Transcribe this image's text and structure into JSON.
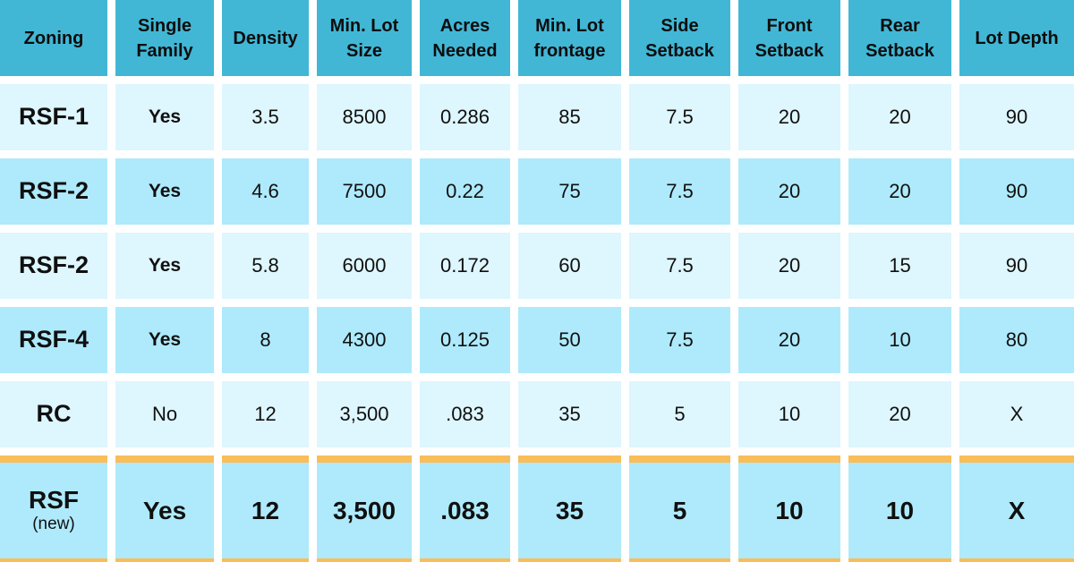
{
  "colors": {
    "header_bg": "#41b7d5",
    "row_light_bg": "#def6fd",
    "row_dark_bg": "#aeeafb",
    "highlight_accent": "#f9bd59",
    "text": "#101010",
    "gap": "#ffffff"
  },
  "header": {
    "labels": [
      "Zoning",
      "Single Family",
      "Density",
      "Min. Lot Size",
      "Acres Needed",
      "Min. Lot frontage",
      "Side Setback",
      "Front Setback",
      "Rear Setback",
      "Lot Depth"
    ]
  },
  "rows": [
    {
      "cells": [
        "RSF-1",
        "Yes",
        "3.5",
        "8500",
        "0.286",
        "85",
        "7.5",
        "20",
        "20",
        "90"
      ]
    },
    {
      "cells": [
        "RSF-2",
        "Yes",
        "4.6",
        "7500",
        "0.22",
        "75",
        "7.5",
        "20",
        "20",
        "90"
      ]
    },
    {
      "cells": [
        "RSF-2",
        "Yes",
        "5.8",
        "6000",
        "0.172",
        "60",
        "7.5",
        "20",
        "15",
        "90"
      ]
    },
    {
      "cells": [
        "RSF-4",
        "Yes",
        "8",
        "4300",
        "0.125",
        "50",
        "7.5",
        "20",
        "10",
        "80"
      ]
    },
    {
      "cells": [
        "RC",
        "No",
        "12",
        "3,500",
        ".083",
        "35",
        "5",
        "10",
        "20",
        "X"
      ]
    },
    {
      "cells": [
        "RSF",
        "Yes",
        "12",
        "3,500",
        ".083",
        "35",
        "5",
        "10",
        "10",
        "X"
      ],
      "note": "(new)"
    }
  ],
  "chart_data": {
    "type": "table",
    "columns": [
      "Zoning",
      "Single Family",
      "Density",
      "Min. Lot Size",
      "Acres Needed",
      "Min. Lot frontage",
      "Side Setback",
      "Front Setback",
      "Rear Setback",
      "Lot Depth"
    ],
    "rows": [
      [
        "RSF-1",
        "Yes",
        3.5,
        8500,
        0.286,
        85,
        7.5,
        20,
        20,
        90
      ],
      [
        "RSF-2",
        "Yes",
        4.6,
        7500,
        0.22,
        75,
        7.5,
        20,
        20,
        90
      ],
      [
        "RSF-2",
        "Yes",
        5.8,
        6000,
        0.172,
        60,
        7.5,
        20,
        15,
        90
      ],
      [
        "RSF-4",
        "Yes",
        8,
        4300,
        0.125,
        50,
        7.5,
        20,
        10,
        80
      ],
      [
        "RC",
        "No",
        12,
        3500,
        0.083,
        35,
        5,
        10,
        20,
        "X"
      ],
      [
        "RSF (new)",
        "Yes",
        12,
        3500,
        0.083,
        35,
        5,
        10,
        10,
        "X"
      ]
    ],
    "highlighted_row_index": 5,
    "layout": "header row teal, data rows alternate pale/medium cyan, final row framed with orange top and bottom bars"
  }
}
